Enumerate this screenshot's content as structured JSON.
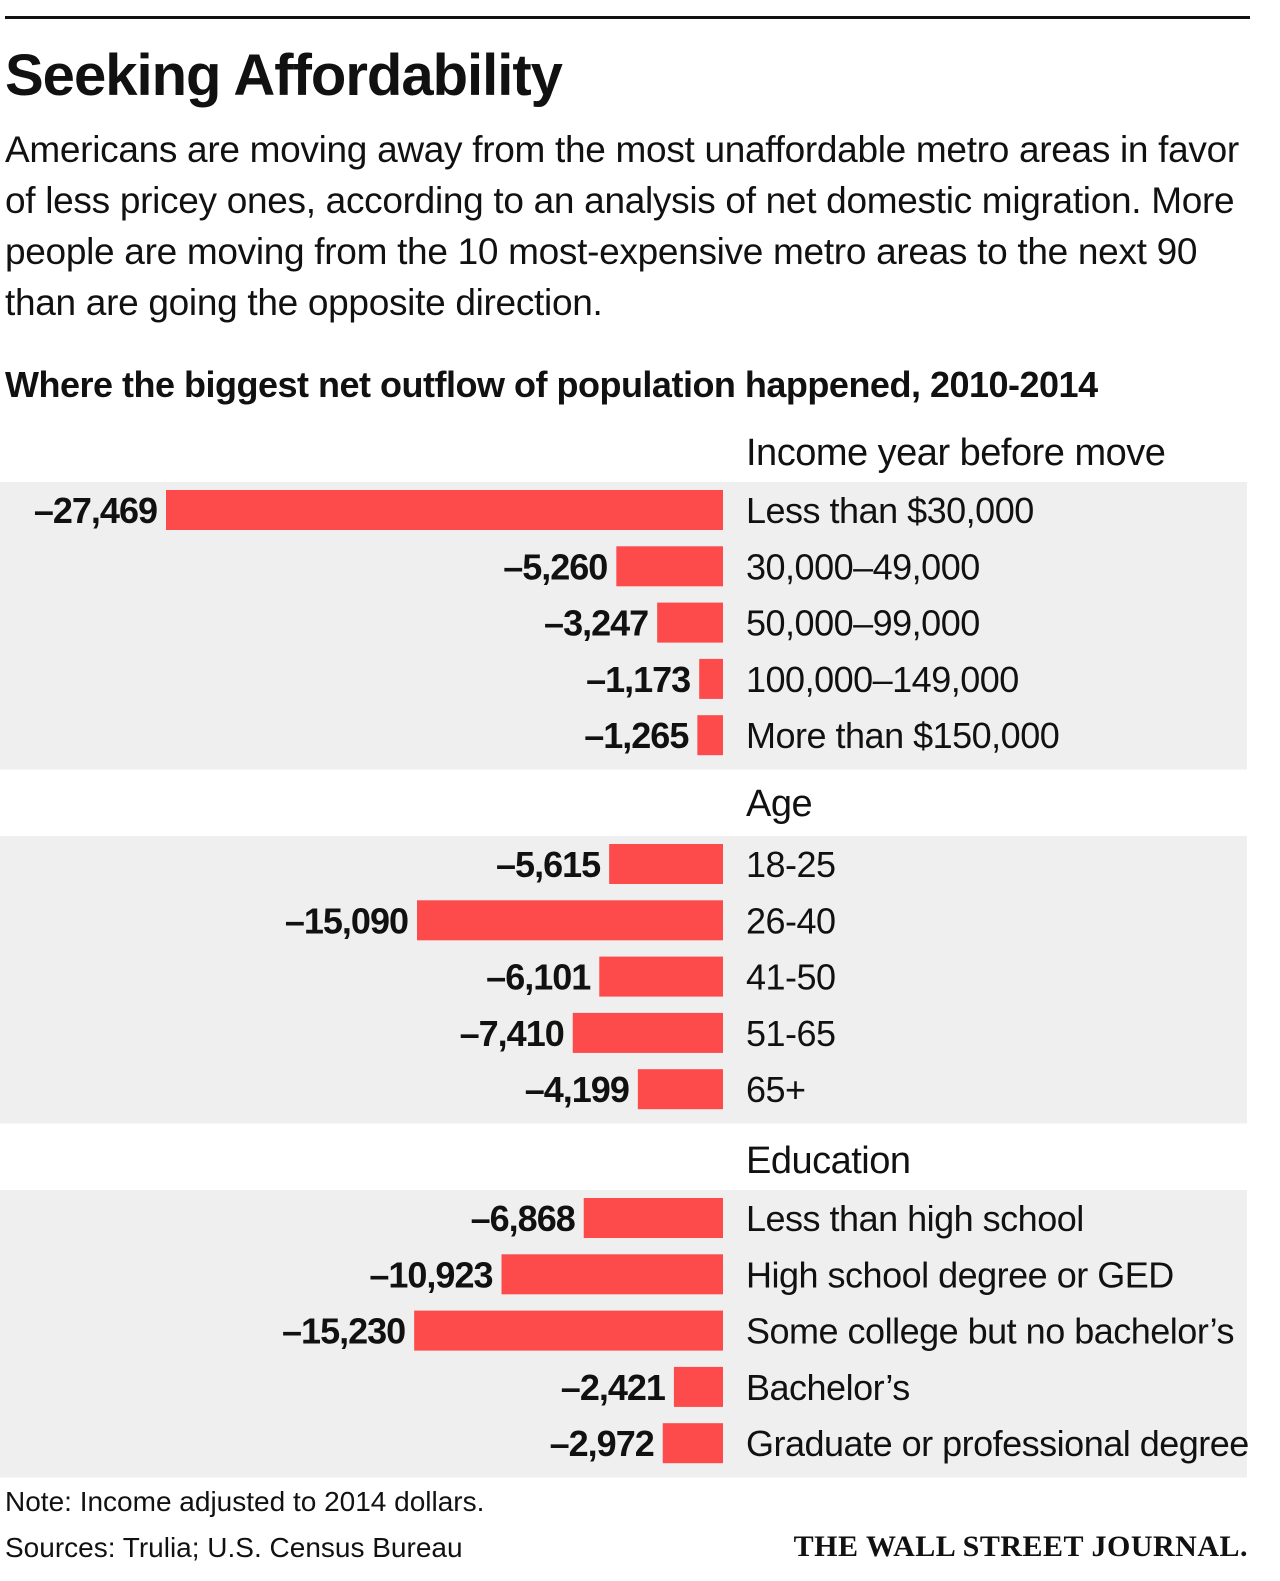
{
  "header": {
    "title": "Seeking Affordability",
    "description": "Americans are moving away from the most unaffordable metro areas in favor of less pricey ones, according to an analysis of net domestic migration. More people are moving from the 10 most-expensive metro areas to the next 90 than are going the opposite direction."
  },
  "chart_data": {
    "type": "bar",
    "orientation": "horizontal",
    "title": "Where the biggest net outflow of population happened, 2010-2014",
    "bar_color": "#fd4a4a",
    "panel_color": "#efefef",
    "groups": [
      {
        "name": "Income year before move",
        "categories": [
          "Less than $30,000",
          "30,000–49,000",
          "50,000–99,000",
          "100,000–149,000",
          "More than $150,000"
        ],
        "values": [
          -27469,
          -5260,
          -3247,
          -1173,
          -1265
        ],
        "labels": [
          "–27,469",
          "–5,260",
          "–3,247",
          "–1,173",
          "–1,265"
        ]
      },
      {
        "name": "Age",
        "categories": [
          "18-25",
          "26-40",
          "41-50",
          "51-65",
          "65+"
        ],
        "values": [
          -5615,
          -15090,
          -6101,
          -7410,
          -4199
        ],
        "labels": [
          "–5,615",
          "–15,090",
          "–6,101",
          "–7,410",
          "–4,199"
        ]
      },
      {
        "name": "Education",
        "categories": [
          "Less than high school",
          "High school degree or GED",
          "Some college but no bachelor’s",
          "Bachelor’s",
          "Graduate or professional degree"
        ],
        "values": [
          -6868,
          -10923,
          -15230,
          -2421,
          -2972
        ],
        "labels": [
          "–6,868",
          "–10,923",
          "–15,230",
          "–2,421",
          "–2,972"
        ]
      }
    ]
  },
  "footer": {
    "note": "Note: Income adjusted to 2014 dollars.",
    "sources": "Sources: Trulia; U.S. Census Bureau",
    "publisher": "THE WALL STREET JOURNAL."
  }
}
